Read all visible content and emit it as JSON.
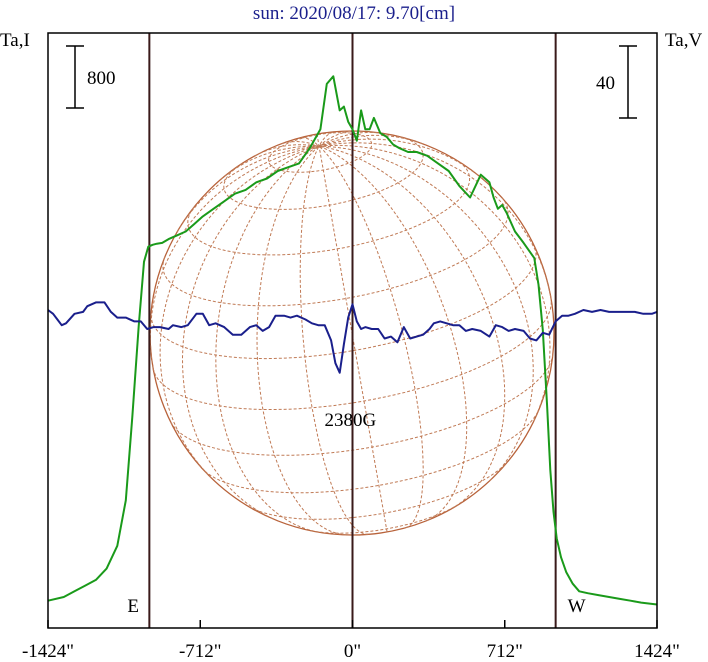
{
  "chart_data": {
    "type": "line",
    "title": "sun: 2020/08/17: 9.70[cm]",
    "y_left_label": "Ta,I",
    "y_right_label": "Ta,V",
    "scale_bar_left": "800",
    "scale_bar_right": "40",
    "xlim": [
      -1424,
      1424
    ],
    "x_ticks": [
      -1424,
      -712,
      0,
      712,
      1424
    ],
    "x_tick_labels": [
      "-1424\"",
      "-712\"",
      "0\"",
      "712\"",
      "1424\""
    ],
    "limb_markers": [
      {
        "x": -950,
        "label": "E"
      },
      {
        "x": 950,
        "label": "W"
      }
    ],
    "source_annotation": {
      "x": -10,
      "label": "2380G"
    },
    "series": [
      {
        "name": "Ta,I",
        "color": "#1a9a1a",
        "x": [
          -1424,
          -1350,
          -1300,
          -1250,
          -1200,
          -1150,
          -1100,
          -1060,
          -1030,
          -1000,
          -975,
          -955,
          -935,
          -915,
          -890,
          -860,
          -820,
          -780,
          -740,
          -700,
          -650,
          -600,
          -550,
          -500,
          -450,
          -400,
          -350,
          -300,
          -250,
          -200,
          -150,
          -120,
          -90,
          -60,
          -40,
          -20,
          0,
          20,
          40,
          60,
          80,
          100,
          130,
          160,
          190,
          220,
          260,
          300,
          350,
          400,
          450,
          500,
          550,
          600,
          640,
          660,
          680,
          700,
          720,
          760,
          800,
          850,
          870,
          890,
          910,
          925,
          940,
          955,
          975,
          1000,
          1030,
          1060,
          1100,
          1150,
          1200,
          1250,
          1300,
          1350,
          1424
        ],
        "y": [
          0.035,
          0.045,
          0.06,
          0.075,
          0.09,
          0.12,
          0.18,
          0.3,
          0.52,
          0.76,
          0.93,
          0.97,
          0.975,
          0.978,
          0.98,
          0.99,
          1.0,
          1.01,
          1.03,
          1.05,
          1.07,
          1.09,
          1.11,
          1.12,
          1.14,
          1.15,
          1.17,
          1.18,
          1.19,
          1.23,
          1.28,
          1.4,
          1.42,
          1.33,
          1.34,
          1.3,
          1.28,
          1.25,
          1.33,
          1.28,
          1.28,
          1.31,
          1.27,
          1.26,
          1.24,
          1.23,
          1.22,
          1.22,
          1.21,
          1.19,
          1.17,
          1.13,
          1.1,
          1.16,
          1.14,
          1.1,
          1.07,
          1.08,
          1.06,
          1.01,
          0.98,
          0.94,
          0.87,
          0.75,
          0.55,
          0.38,
          0.27,
          0.2,
          0.15,
          0.11,
          0.08,
          0.06,
          0.055,
          0.05,
          0.045,
          0.04,
          0.035,
          0.03,
          0.025
        ]
      },
      {
        "name": "Ta,V",
        "color": "#1a1f8c",
        "x": [
          -1424,
          -1400,
          -1380,
          -1360,
          -1340,
          -1300,
          -1260,
          -1240,
          -1200,
          -1160,
          -1130,
          -1100,
          -1060,
          -1020,
          -990,
          -960,
          -930,
          -900,
          -860,
          -840,
          -800,
          -770,
          -730,
          -700,
          -670,
          -640,
          -600,
          -560,
          -520,
          -480,
          -450,
          -420,
          -390,
          -360,
          -320,
          -290,
          -260,
          -220,
          -190,
          -160,
          -130,
          -100,
          -80,
          -60,
          -40,
          -20,
          0,
          20,
          40,
          60,
          90,
          120,
          150,
          180,
          210,
          240,
          270,
          300,
          330,
          360,
          380,
          410,
          440,
          470,
          500,
          530,
          560,
          600,
          640,
          670,
          700,
          730,
          760,
          800,
          830,
          860,
          890,
          920,
          950,
          980,
          1010,
          1040,
          1080,
          1120,
          1160,
          1200,
          1240,
          1280,
          1320,
          1360,
          1400,
          1424
        ],
        "y": [
          0,
          -2,
          -5,
          -8,
          -7,
          -2,
          -1,
          2,
          4,
          4,
          -1,
          -4,
          -4,
          -6,
          -6,
          -10,
          -9,
          -9,
          -10,
          -8,
          -9,
          -8,
          -2,
          -2,
          -8,
          -7,
          -9,
          -13,
          -13,
          -9,
          -8,
          -11,
          -9,
          -3,
          -3,
          -4,
          -3,
          -5,
          -7,
          -8,
          -8,
          -16,
          -28,
          -33,
          -18,
          -4,
          3,
          -6,
          -10,
          -9,
          -10,
          -10,
          -15,
          -14,
          -17,
          -9,
          -15,
          -14,
          -13,
          -10,
          -7,
          -6,
          -7,
          -8,
          -8,
          -11,
          -10,
          -11,
          -14,
          -8,
          -9,
          -11,
          -10,
          -11,
          -15,
          -16,
          -12,
          -13,
          -6,
          -3,
          -3,
          -2,
          0,
          -1,
          0,
          -1,
          -1,
          -1,
          -1,
          -2,
          -2,
          -1
        ]
      }
    ],
    "ylim_left": [
      0,
      1.5
    ],
    "ylim_right": [
      -60,
      60
    ]
  }
}
